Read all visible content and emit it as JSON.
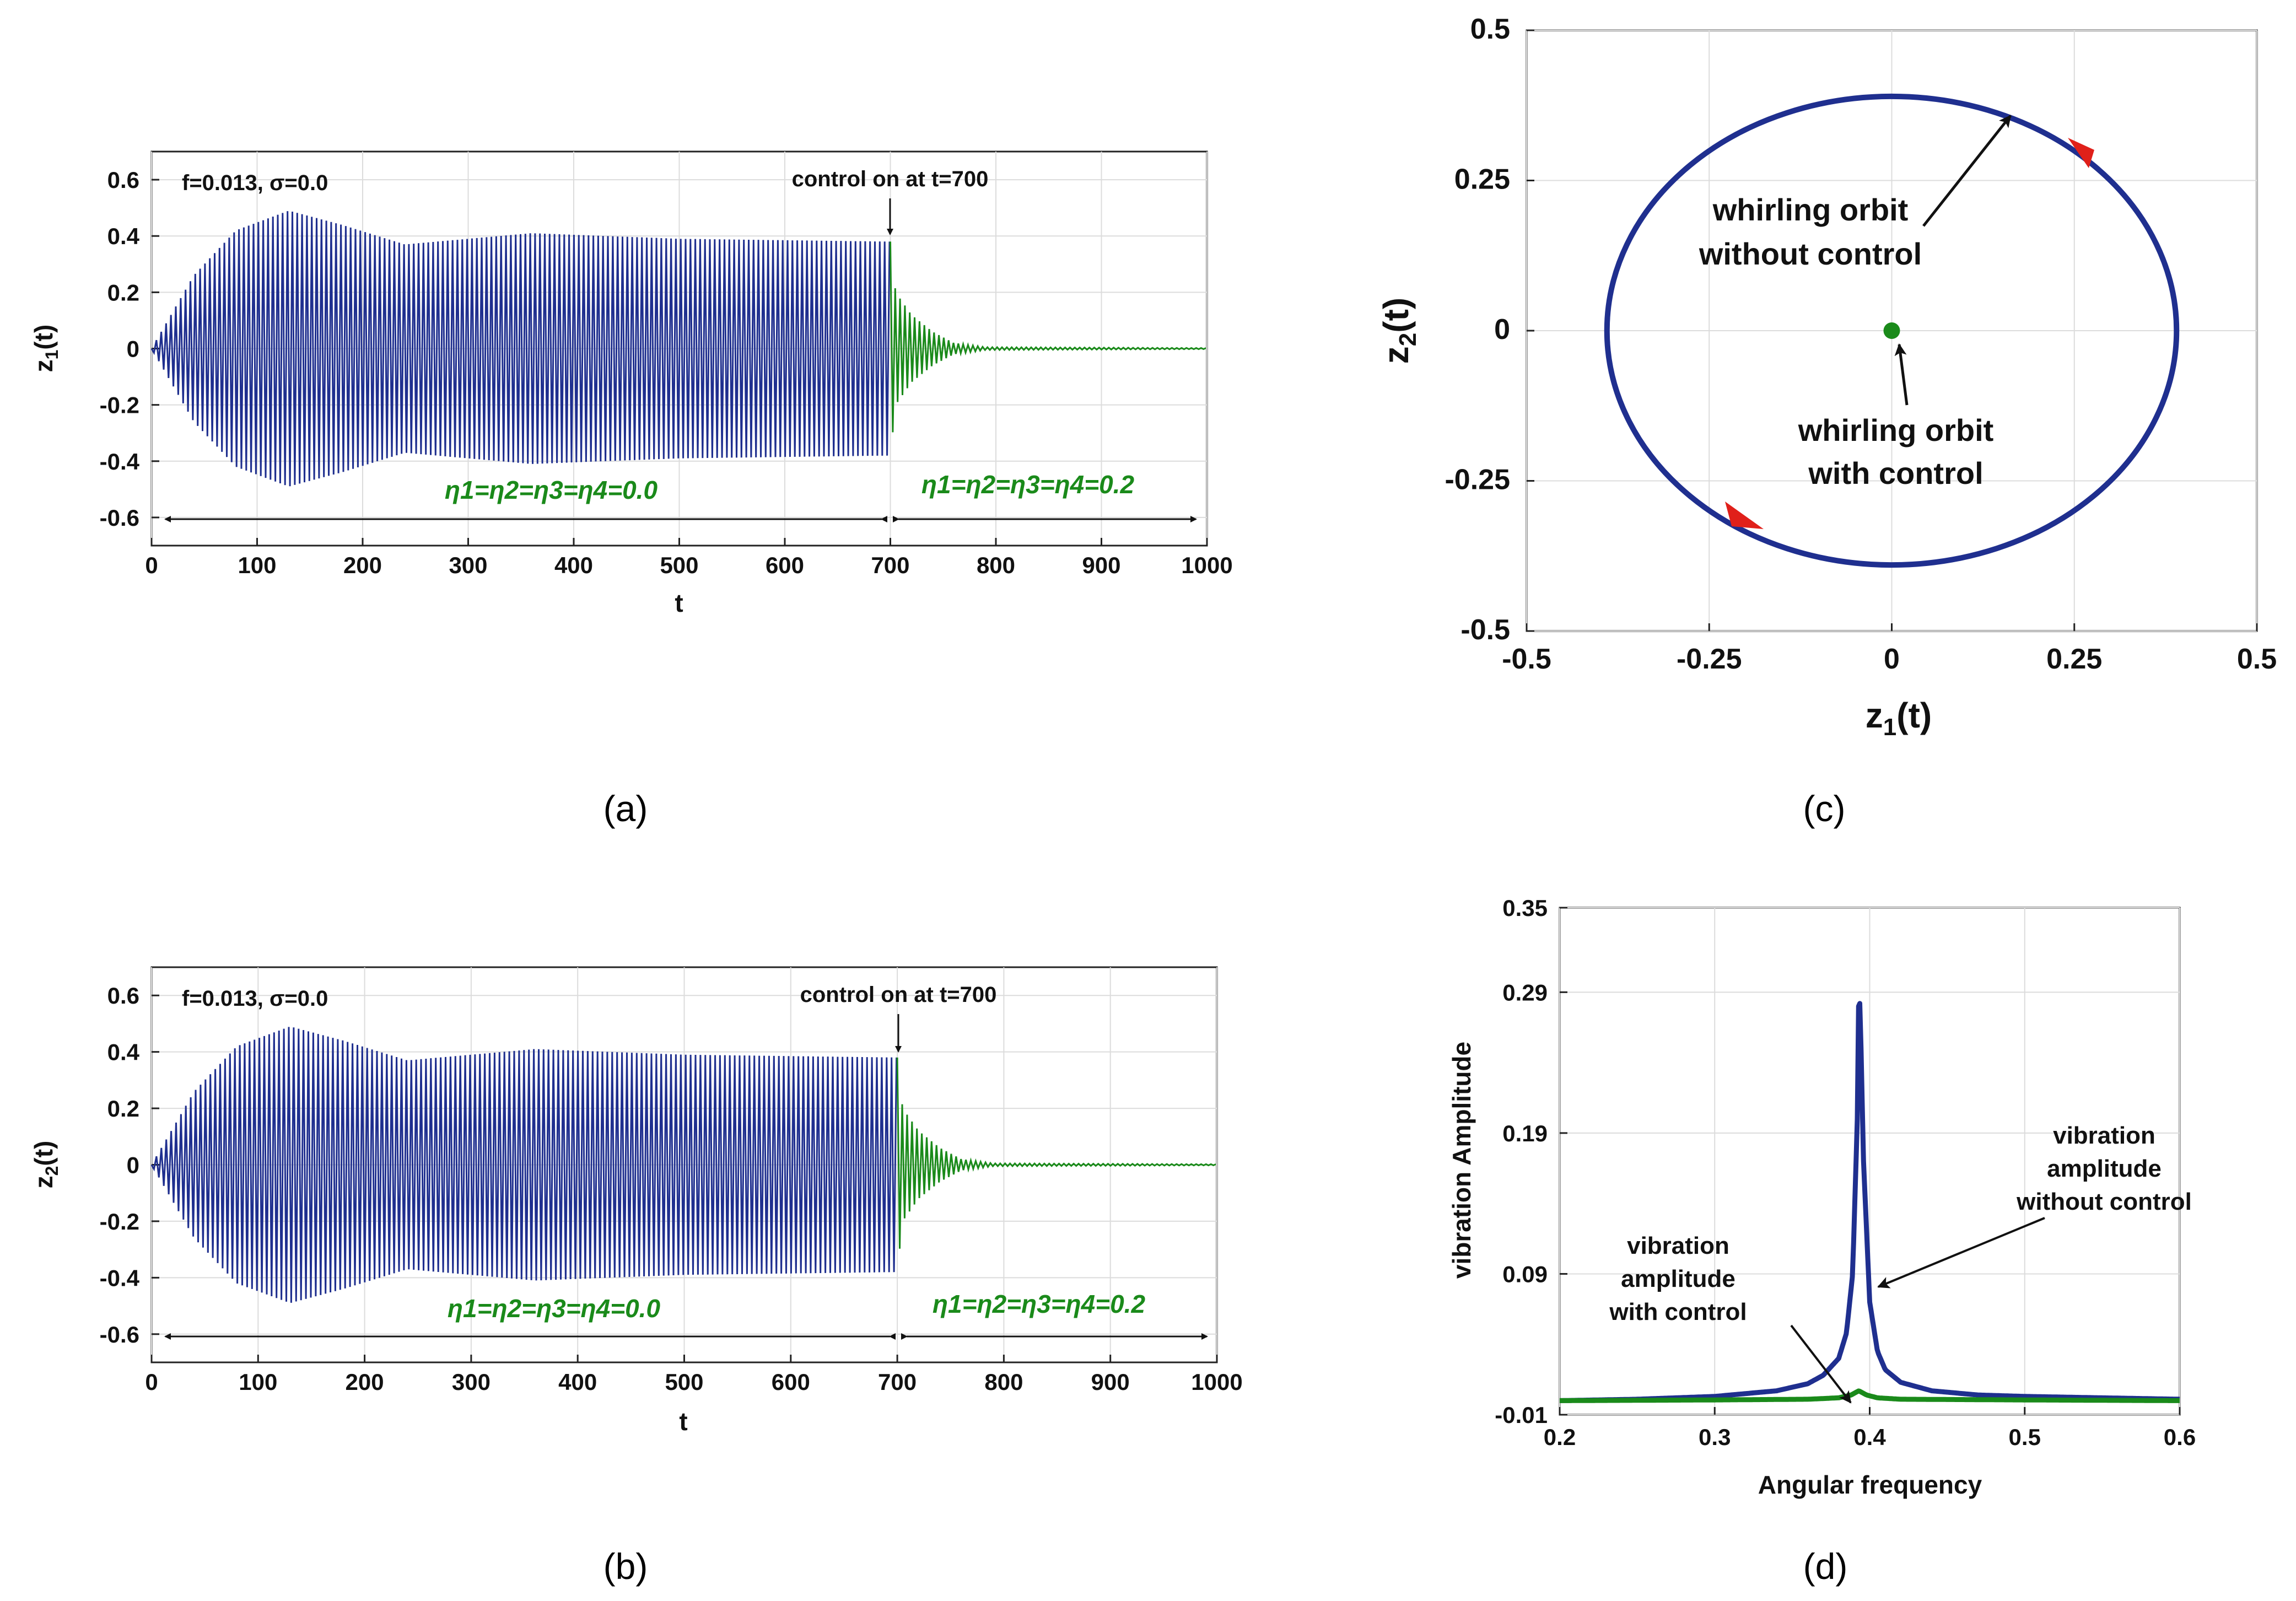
{
  "colors": {
    "uncontrolled": "#1f2f8f",
    "controlled": "#1a8a1a",
    "arrow_red": "#e0201a",
    "annotation": "#111111"
  },
  "chart_data": [
    {
      "id": "a",
      "type": "line",
      "panel_label": "(a)",
      "xlabel": "t",
      "ylabel": "z1(t)",
      "xlim": [
        0,
        1000
      ],
      "ylim": [
        -0.7,
        0.7
      ],
      "xticks": [
        "0",
        "100",
        "200",
        "300",
        "400",
        "500",
        "600",
        "700",
        "800",
        "900",
        "1000"
      ],
      "yticks": [
        "0.6",
        "0.4",
        "0.2",
        "0",
        "-0.2",
        "-0.4",
        "-0.6"
      ],
      "grid": true,
      "series": [
        {
          "name": "without control",
          "t_range": [
            0,
            700
          ],
          "envelope": {
            "t": [
              0,
              40,
              80,
              130,
              180,
              240,
              300,
              360,
              430,
              500,
              600,
              700
            ],
            "amp": [
              0,
              0.26,
              0.42,
              0.49,
              0.44,
              0.37,
              0.39,
              0.41,
              0.4,
              0.39,
              0.385,
              0.38
            ]
          }
        },
        {
          "name": "with control",
          "t_range": [
            700,
            1000
          ],
          "envelope": {
            "t": [
              700,
              705,
              720,
              740,
              760,
              790,
              1000
            ],
            "amp": [
              0.38,
              0.2,
              0.12,
              0.06,
              0.02,
              0.005,
              0.002
            ]
          }
        }
      ],
      "annotations": {
        "params": "f=0.013, σ=0.0",
        "control_note": "control on at t=700",
        "eta_before": "η1=η2=η3=η4=0.0",
        "eta_after": "η1=η2=η3=η4=0.2"
      }
    },
    {
      "id": "b",
      "type": "line",
      "panel_label": "(b)",
      "xlabel": "t",
      "ylabel": "z2(t)",
      "xlim": [
        0,
        1000
      ],
      "ylim": [
        -0.7,
        0.7
      ],
      "xticks": [
        "0",
        "100",
        "200",
        "300",
        "400",
        "500",
        "600",
        "700",
        "800",
        "900",
        "1000"
      ],
      "yticks": [
        "0.6",
        "0.4",
        "0.2",
        "0",
        "-0.2",
        "-0.4",
        "-0.6"
      ],
      "grid": true,
      "series": [
        {
          "name": "without control",
          "t_range": [
            0,
            700
          ],
          "envelope": {
            "t": [
              0,
              40,
              80,
              130,
              180,
              240,
              300,
              360,
              430,
              500,
              600,
              700
            ],
            "amp": [
              0,
              0.26,
              0.42,
              0.49,
              0.44,
              0.37,
              0.39,
              0.41,
              0.4,
              0.39,
              0.385,
              0.38
            ]
          }
        },
        {
          "name": "with control",
          "t_range": [
            700,
            1000
          ],
          "envelope": {
            "t": [
              700,
              705,
              720,
              740,
              760,
              790,
              1000
            ],
            "amp": [
              0.38,
              0.2,
              0.12,
              0.06,
              0.02,
              0.005,
              0.002
            ]
          }
        }
      ],
      "annotations": {
        "params": "f=0.013, σ=0.0",
        "control_note": "control on at t=700",
        "eta_before": "η1=η2=η3=η4=0.0",
        "eta_after": "η1=η2=η3=η4=0.2"
      }
    },
    {
      "id": "c",
      "type": "line",
      "panel_label": "(c)",
      "xlabel": "z1(t)",
      "ylabel": "z2(t)",
      "xlim": [
        -0.5,
        0.5
      ],
      "ylim": [
        -0.5,
        0.5
      ],
      "xticks": [
        "-0.5",
        "-0.25",
        "0",
        "0.25",
        "0.5"
      ],
      "yticks": [
        "0.5",
        "0.25",
        "0",
        "-0.25",
        "-0.5"
      ],
      "grid": true,
      "series": [
        {
          "name": "whirling orbit without control",
          "center": [
            0,
            0
          ],
          "radius": 0.39
        },
        {
          "name": "whirling orbit with control",
          "point": [
            0,
            0
          ]
        }
      ],
      "annotations": {
        "without": [
          "whirling orbit",
          "without control"
        ],
        "with": [
          "whirling orbit",
          "with control"
        ]
      }
    },
    {
      "id": "d",
      "type": "line",
      "panel_label": "(d)",
      "xlabel": "Angular frequency",
      "ylabel": "vibration Amplitude",
      "xlim": [
        0.2,
        0.6
      ],
      "ylim": [
        -0.01,
        0.35
      ],
      "xticks": [
        "0.2",
        "0.3",
        "0.4",
        "0.5",
        "0.6"
      ],
      "yticks": [
        "0.35",
        "0.29",
        "0.19",
        "0.09",
        "-0.01"
      ],
      "grid": true,
      "series": [
        {
          "name": "vibration amplitude without control",
          "x": [
            0.2,
            0.25,
            0.3,
            0.34,
            0.36,
            0.37,
            0.38,
            0.385,
            0.389,
            0.392,
            0.393,
            0.394,
            0.396,
            0.4,
            0.405,
            0.41,
            0.42,
            0.44,
            0.47,
            0.5,
            0.55,
            0.6
          ],
          "y": [
            0.0,
            0.001,
            0.003,
            0.007,
            0.012,
            0.018,
            0.03,
            0.048,
            0.09,
            0.2,
            0.3,
            0.27,
            0.17,
            0.07,
            0.035,
            0.022,
            0.013,
            0.007,
            0.004,
            0.003,
            0.002,
            0.001
          ]
        },
        {
          "name": "vibration amplitude with control",
          "x": [
            0.2,
            0.3,
            0.36,
            0.38,
            0.388,
            0.393,
            0.398,
            0.405,
            0.42,
            0.5,
            0.6
          ],
          "y": [
            0.0,
            0.0005,
            0.001,
            0.002,
            0.004,
            0.007,
            0.004,
            0.002,
            0.001,
            0.0005,
            0.0
          ]
        }
      ],
      "annotations": {
        "without": [
          "vibration",
          "amplitude",
          "without control"
        ],
        "with": [
          "vibration",
          "amplitude",
          "with control"
        ]
      }
    }
  ]
}
